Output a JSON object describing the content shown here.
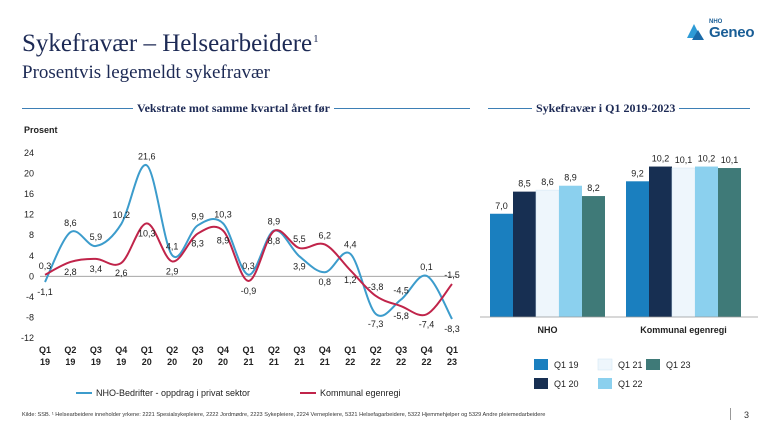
{
  "header": {
    "title": "Sykefravær – Helsearbeidere",
    "title_sup": "1",
    "subtitle": "Prosentvis legemeldt sykefravær",
    "logo_top": "NHO",
    "logo_main": "Geneo"
  },
  "footer": {
    "source": "Kilde: SSB. ¹ Helsearbeidere inneholder yrkene: 2221 Spesialsykepleiere, 2222 Jordmødre, 2223 Sykepleiere, 2224 Vernepleiere, 5321 Helsefagarbeidere, 5322 Hjemmehjelper og 5329 Andre pleiemedarbeidere",
    "page": "3"
  },
  "colors": {
    "nho_line": "#3c9ccc",
    "kommunal_line": "#c0244a",
    "q1_19": "#1a7fbf",
    "q1_20": "#172f52",
    "q1_21": "#eef6fc",
    "q1_22": "#8bd0ee",
    "q1_23": "#3f7a78"
  },
  "chart_data": [
    {
      "type": "line",
      "title": "Vekstrate mot samme kvartal året før",
      "ylabel": "Prosent",
      "ylim": [
        -12,
        24
      ],
      "yticks": [
        "24",
        "20",
        "16",
        "12",
        "8",
        "4",
        "0",
        "-4",
        "-8",
        "-12"
      ],
      "categories": [
        [
          "Q1",
          "19"
        ],
        [
          "Q2",
          "19"
        ],
        [
          "Q3",
          "19"
        ],
        [
          "Q4",
          "19"
        ],
        [
          "Q1",
          "20"
        ],
        [
          "Q2",
          "20"
        ],
        [
          "Q3",
          "20"
        ],
        [
          "Q4",
          "20"
        ],
        [
          "Q1",
          "21"
        ],
        [
          "Q2",
          "21"
        ],
        [
          "Q3",
          "21"
        ],
        [
          "Q4",
          "21"
        ],
        [
          "Q1",
          "22"
        ],
        [
          "Q2",
          "22"
        ],
        [
          "Q3",
          "22"
        ],
        [
          "Q4",
          "22"
        ],
        [
          "Q1",
          "23"
        ]
      ],
      "series": [
        {
          "name": "NHO-Bedrifter - oppdrag i privat sektor",
          "values": [
            -1.1,
            8.6,
            5.9,
            10.2,
            21.6,
            4.1,
            9.9,
            10.3,
            0.3,
            8.9,
            3.9,
            0.8,
            4.4,
            -7.3,
            -4.5,
            0.1,
            -8.3
          ],
          "labels": [
            "-1,1",
            "8,6",
            "5,9",
            "10,2",
            "21,6",
            "4,1",
            "9,9",
            "10,3",
            "0,3",
            "8,9",
            "3,9",
            "0,8",
            "4,4",
            "-7,3",
            "-4,5",
            "0,1",
            "-8,3"
          ]
        },
        {
          "name": "Kommunal egenregi",
          "values": [
            0.3,
            2.8,
            3.4,
            2.6,
            10.3,
            2.9,
            8.3,
            8.9,
            -0.9,
            8.8,
            5.5,
            6.2,
            1.2,
            -3.8,
            -5.8,
            -7.4,
            -1.5
          ],
          "labels": [
            "0,3",
            "2,8",
            "3,4",
            "2,6",
            "10,3",
            "2,9",
            "8,3",
            "8,9",
            "-0,9",
            "8,8",
            "5,5",
            "6,2",
            "1,2",
            "-3,8",
            "-5,8",
            "-7,4",
            "-1,5"
          ]
        }
      ],
      "legend": "bottom"
    },
    {
      "type": "bar",
      "title": "Sykefravær i Q1 2019-2023",
      "categories": [
        "NHO",
        "Kommunal egenregi"
      ],
      "ylim": [
        0,
        12
      ],
      "series": [
        {
          "name": "Q1 19",
          "values": [
            7.0,
            9.2
          ],
          "labels": [
            "7,0",
            "9,2"
          ]
        },
        {
          "name": "Q1 20",
          "values": [
            8.5,
            10.2
          ],
          "labels": [
            "8,5",
            "10,2"
          ]
        },
        {
          "name": "Q1 21",
          "values": [
            8.6,
            10.1
          ],
          "labels": [
            "8,6",
            "10,1"
          ]
        },
        {
          "name": "Q1 22",
          "values": [
            8.9,
            10.2
          ],
          "labels": [
            "8,9",
            "10,2"
          ]
        },
        {
          "name": "Q1 23",
          "values": [
            8.2,
            10.1
          ],
          "labels": [
            "8,2",
            "10,1"
          ]
        }
      ],
      "legend": "bottom"
    }
  ]
}
